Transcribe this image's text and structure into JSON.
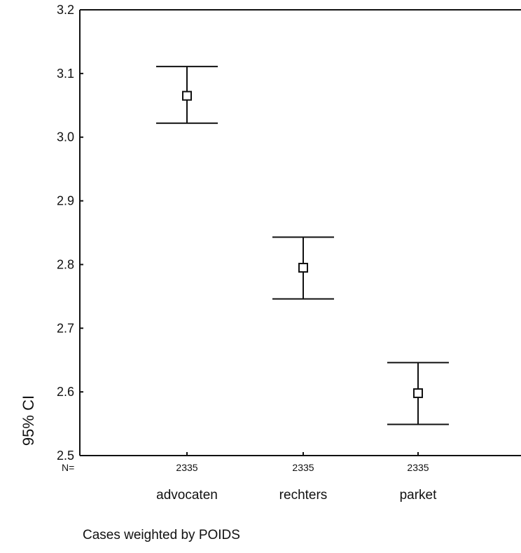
{
  "chart_data": {
    "type": "errorbar",
    "ylabel": "95% CI",
    "ylim": [
      2.5,
      3.2
    ],
    "yticks": [
      "2.5",
      "2.6",
      "2.7",
      "2.8",
      "2.9",
      "3.0",
      "3.1",
      "3.2"
    ],
    "n_prefix": "N=",
    "categories": [
      "advocaten",
      "rechters",
      "parket"
    ],
    "n_values": [
      "2335",
      "2335",
      "2335"
    ],
    "means": [
      3.065,
      2.795,
      2.598
    ],
    "lower": [
      3.022,
      2.746,
      2.549
    ],
    "upper": [
      3.111,
      2.843,
      2.646
    ],
    "grid": false,
    "legend": "none"
  },
  "footnote": "Cases weighted by POIDS"
}
